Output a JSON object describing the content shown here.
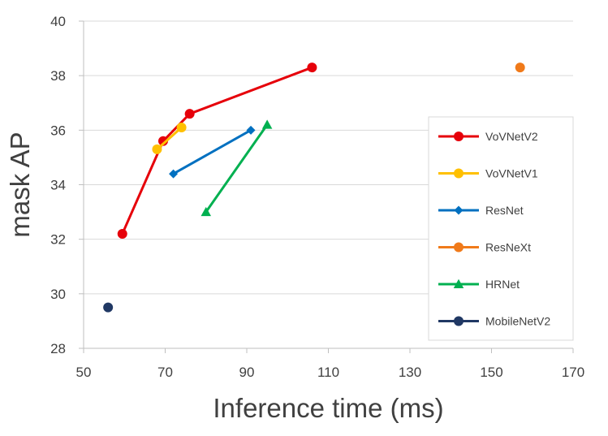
{
  "chart_data": {
    "type": "line",
    "xlabel": "Inference time (ms)",
    "ylabel": "mask AP",
    "xlim": [
      50,
      170
    ],
    "ylim": [
      28,
      40
    ],
    "xticks": [
      50,
      70,
      90,
      110,
      130,
      150,
      170
    ],
    "yticks": [
      28,
      30,
      32,
      34,
      36,
      38,
      40
    ],
    "grid": "horizontal",
    "legend_position": "right",
    "series": [
      {
        "name": "VoVNetV2",
        "color": "#e6000a",
        "marker": "circle",
        "points": [
          [
            59.5,
            32.2
          ],
          [
            69.5,
            35.6
          ],
          [
            76,
            36.6
          ],
          [
            106,
            38.3
          ]
        ]
      },
      {
        "name": "VoVNetV1",
        "color": "#ffc000",
        "marker": "circle",
        "points": [
          [
            68,
            35.3
          ],
          [
            74,
            36.1
          ]
        ]
      },
      {
        "name": "ResNet",
        "color": "#0070c0",
        "marker": "diamond",
        "points": [
          [
            72,
            34.4
          ],
          [
            91,
            36.0
          ]
        ]
      },
      {
        "name": "ResNeXt",
        "color": "#f07a1a",
        "marker": "circle",
        "points": [
          [
            157,
            38.3
          ]
        ]
      },
      {
        "name": "HRNet",
        "color": "#00b050",
        "marker": "triangle",
        "points": [
          [
            80,
            33.0
          ],
          [
            95,
            36.2
          ]
        ]
      },
      {
        "name": "MobileNetV2",
        "color": "#203864",
        "marker": "circle",
        "points": [
          [
            56,
            29.5
          ]
        ]
      }
    ]
  }
}
